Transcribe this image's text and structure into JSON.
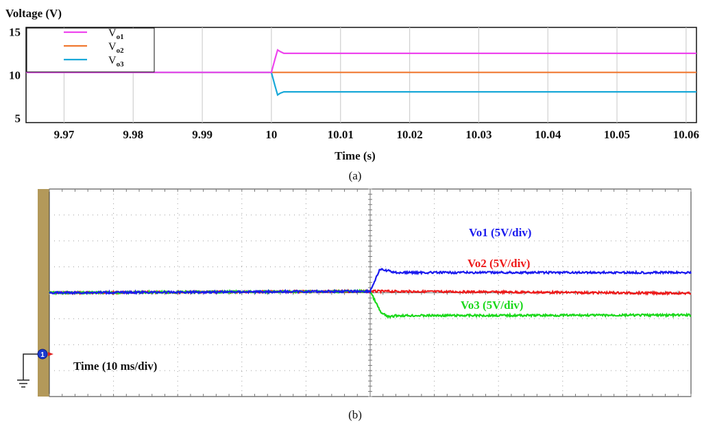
{
  "chart_data": [
    {
      "type": "line",
      "panel_caption": "(a)",
      "ylabel": "Voltage (V)",
      "xlabel": "Time (s)",
      "xlim": [
        9.9645,
        10.0615
      ],
      "ylim": [
        4.5,
        15.5
      ],
      "x_ticks": [
        "9.97",
        "9.98",
        "9.99",
        "10",
        "10.01",
        "10.02",
        "10.03",
        "10.04",
        "10.05",
        "10.06"
      ],
      "x_tick_values": [
        9.97,
        9.98,
        9.99,
        10.0,
        10.01,
        10.02,
        10.03,
        10.04,
        10.05,
        10.06
      ],
      "y_ticks": [
        "5",
        "10",
        "15"
      ],
      "y_tick_values": [
        5,
        10,
        15
      ],
      "grid": true,
      "legend_position": "top-left",
      "series": [
        {
          "name": "V",
          "subscript": "o1",
          "color": "#ee44ee",
          "points": [
            [
              9.9645,
              10.3
            ],
            [
              10.0,
              10.3
            ],
            [
              10.0005,
              11.8
            ],
            [
              10.0009,
              12.9
            ],
            [
              10.0013,
              12.7
            ],
            [
              10.0018,
              12.5
            ],
            [
              10.0615,
              12.5
            ]
          ]
        },
        {
          "name": "V",
          "subscript": "o2",
          "color": "#f07830",
          "points": [
            [
              9.9645,
              10.3
            ],
            [
              10.0615,
              10.3
            ]
          ]
        },
        {
          "name": "V",
          "subscript": "o3",
          "color": "#18a8d8",
          "points": [
            [
              9.9645,
              10.3
            ],
            [
              10.0,
              10.3
            ],
            [
              10.0005,
              8.8
            ],
            [
              10.0009,
              7.7
            ],
            [
              10.0013,
              7.9
            ],
            [
              10.0018,
              8.05
            ],
            [
              10.0615,
              8.05
            ]
          ]
        }
      ]
    },
    {
      "type": "line",
      "panel_caption": "(b)",
      "xlabel": "Time (10 ms/div)",
      "grid": true,
      "divisions_x": 10,
      "divisions_y": 8,
      "xlim": [
        0,
        100
      ],
      "ylim": [
        -4,
        4
      ],
      "channel_marker": "1",
      "series": [
        {
          "name": "Vo1 (5V/div)",
          "color": "#1a1aee",
          "points": [
            [
              0,
              0
            ],
            [
              50,
              0.06
            ],
            [
              51.5,
              0.9
            ],
            [
              53.0,
              0.84
            ],
            [
              54.0,
              0.78
            ],
            [
              100,
              0.78
            ]
          ]
        },
        {
          "name": "Vo2 (5V/div)",
          "color": "#ee1a1a",
          "points": [
            [
              0,
              0
            ],
            [
              50,
              0.06
            ],
            [
              100,
              -0.02
            ]
          ]
        },
        {
          "name": "Vo3 (5V/div)",
          "color": "#1ad81a",
          "points": [
            [
              0,
              0
            ],
            [
              50,
              0.06
            ],
            [
              51.7,
              -0.78
            ],
            [
              53.0,
              -0.94
            ],
            [
              54.0,
              -0.88
            ],
            [
              100,
              -0.86
            ]
          ]
        }
      ]
    }
  ]
}
